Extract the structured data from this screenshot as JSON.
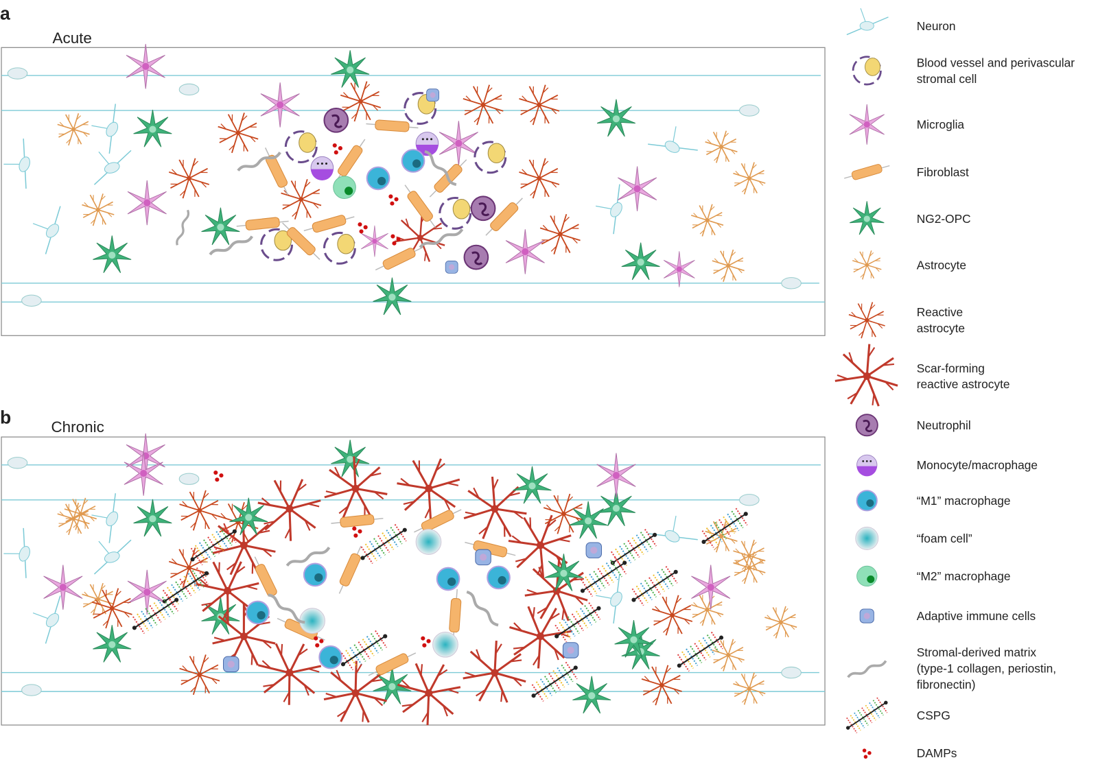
{
  "panels": [
    {
      "letter": "a",
      "title": "Acute"
    },
    {
      "letter": "b",
      "title": "Chronic"
    }
  ],
  "legend": [
    {
      "lines": [
        "Neuron"
      ]
    },
    {
      "lines": [
        "Blood vessel and perivascular",
        "stromal cell"
      ]
    },
    {
      "lines": [
        "Microglia"
      ]
    },
    {
      "lines": [
        "Fibroblast"
      ]
    },
    {
      "lines": [
        "NG2-OPC"
      ]
    },
    {
      "lines": [
        "Astrocyte"
      ]
    },
    {
      "lines": [
        "Reactive",
        "astrocyte"
      ]
    },
    {
      "lines": [
        "Scar-forming",
        "reactive astrocyte"
      ]
    },
    {
      "lines": [
        "Neutrophil"
      ]
    },
    {
      "lines": [
        "Monocyte/macrophage"
      ]
    },
    {
      "lines": [
        "“M1” macrophage"
      ]
    },
    {
      "lines": [
        "“foam cell”"
      ]
    },
    {
      "lines": [
        "“M2” macrophage"
      ]
    },
    {
      "lines": [
        "Adaptive immune cells"
      ]
    },
    {
      "lines": [
        "Stromal-derived matrix",
        "(type-1 collagen, periostin,",
        "fibronectin)"
      ]
    },
    {
      "lines": [
        "CSPG"
      ]
    },
    {
      "lines": [
        "DAMPs"
      ]
    }
  ]
}
